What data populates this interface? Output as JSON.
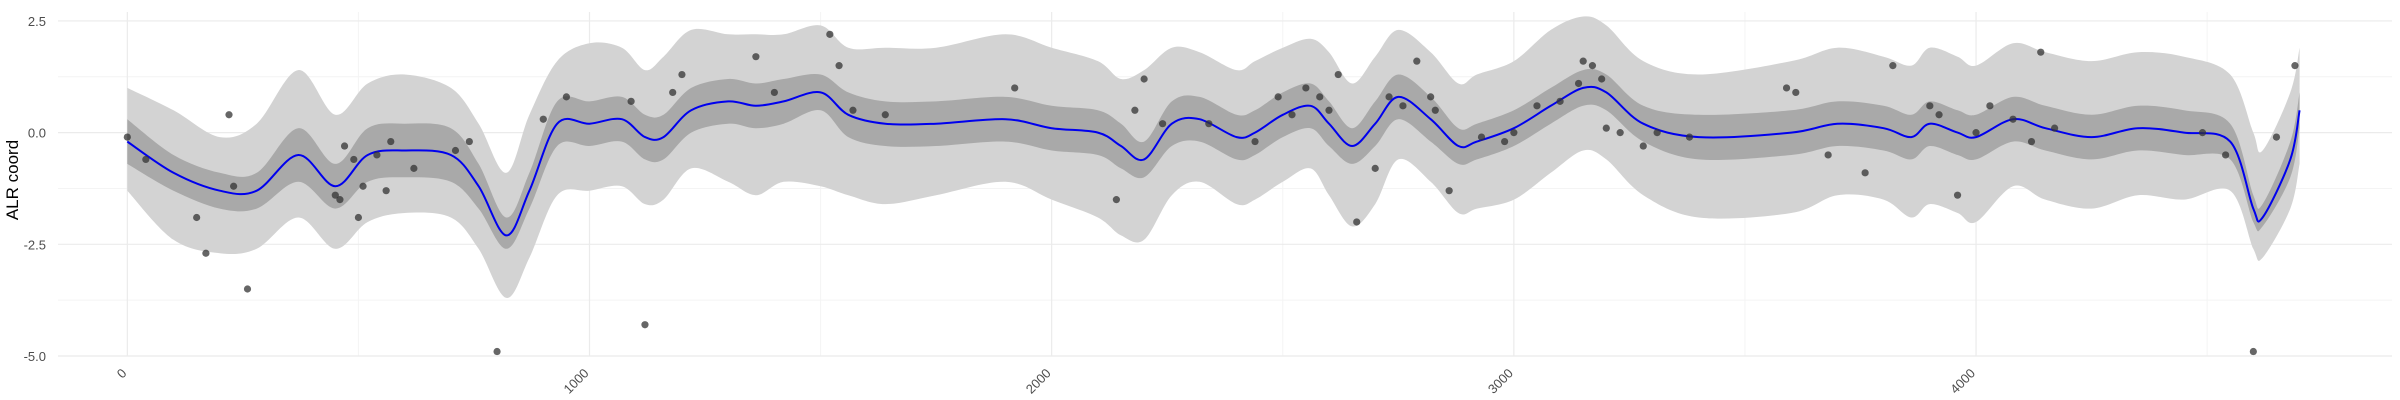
{
  "chart_data": {
    "type": "line",
    "title": "",
    "xlabel": "",
    "ylabel": "ALR coord",
    "xlim": [
      -150,
      4900
    ],
    "ylim": [
      -5.0,
      2.7
    ],
    "x_ticks": [
      0,
      1000,
      2000,
      3000,
      4000
    ],
    "x_tick_labels": [
      "0",
      "1000",
      "2000",
      "3000",
      "4000"
    ],
    "y_ticks": [
      2.5,
      0.0,
      -2.5,
      -5.0
    ],
    "y_tick_labels": [
      "2.5",
      "0.0",
      "-2.5",
      "-5.0"
    ],
    "grid": true,
    "legend": "none",
    "colors": {
      "mean_line": "#0000ee",
      "inner_band": "#a9a9a9",
      "outer_band": "#d3d3d3",
      "points": "#333333",
      "grid_major": "#ebebeb",
      "grid_minor": "#f4f4f4"
    },
    "series": [
      {
        "kind": "mean",
        "x": [
          0,
          100,
          200,
          280,
          370,
          450,
          520,
          600,
          700,
          760,
          820,
          870,
          930,
          1000,
          1070,
          1120,
          1160,
          1220,
          1300,
          1360,
          1420,
          1500,
          1560,
          1640,
          1750,
          1900,
          2000,
          2100,
          2150,
          2200,
          2260,
          2320,
          2400,
          2440,
          2500,
          2560,
          2600,
          2650,
          2700,
          2750,
          2820,
          2880,
          2920,
          3000,
          3080,
          3150,
          3200,
          3280,
          3400,
          3600,
          3700,
          3800,
          3860,
          3900,
          3960,
          4000,
          4080,
          4150,
          4250,
          4350,
          4450,
          4550,
          4600,
          4620,
          4680,
          4700
        ],
        "values": [
          -0.2,
          -0.9,
          -1.3,
          -1.3,
          -0.5,
          -1.2,
          -0.5,
          -0.4,
          -0.5,
          -1.2,
          -2.3,
          -1.3,
          0.2,
          0.2,
          0.3,
          -0.1,
          -0.1,
          0.5,
          0.7,
          0.6,
          0.7,
          0.9,
          0.4,
          0.2,
          0.2,
          0.3,
          0.1,
          0.0,
          -0.3,
          -0.6,
          0.2,
          0.3,
          -0.1,
          0.0,
          0.4,
          0.6,
          0.2,
          -0.3,
          0.2,
          0.8,
          0.3,
          -0.3,
          -0.2,
          0.1,
          0.6,
          1.0,
          0.9,
          0.2,
          -0.1,
          0.0,
          0.2,
          0.1,
          -0.1,
          0.2,
          0.0,
          -0.1,
          0.3,
          0.1,
          -0.1,
          0.1,
          0.0,
          -0.2,
          -1.7,
          -1.9,
          -0.6,
          0.5
        ]
      },
      {
        "kind": "inner_band",
        "x": [
          0,
          100,
          200,
          280,
          370,
          450,
          520,
          600,
          700,
          760,
          820,
          870,
          930,
          1000,
          1070,
          1120,
          1160,
          1220,
          1300,
          1360,
          1420,
          1500,
          1560,
          1640,
          1750,
          1900,
          2000,
          2100,
          2150,
          2200,
          2260,
          2320,
          2400,
          2440,
          2500,
          2560,
          2600,
          2650,
          2700,
          2750,
          2820,
          2880,
          2920,
          3000,
          3080,
          3150,
          3200,
          3280,
          3400,
          3600,
          3700,
          3800,
          3860,
          3900,
          3960,
          4000,
          4080,
          4150,
          4250,
          4350,
          4450,
          4550,
          4600,
          4620,
          4680,
          4700
        ],
        "lower": [
          -0.7,
          -1.3,
          -1.7,
          -1.7,
          -1.1,
          -1.7,
          -1.1,
          -1.0,
          -1.1,
          -1.7,
          -2.6,
          -1.7,
          -0.3,
          -0.3,
          -0.2,
          -0.6,
          -0.6,
          0.0,
          0.2,
          0.1,
          0.2,
          0.5,
          -0.1,
          -0.3,
          -0.3,
          -0.2,
          -0.4,
          -0.5,
          -0.8,
          -1.0,
          -0.3,
          -0.2,
          -0.6,
          -0.5,
          -0.1,
          0.1,
          -0.3,
          -0.7,
          -0.3,
          0.3,
          -0.2,
          -0.7,
          -0.6,
          -0.3,
          0.2,
          0.6,
          0.5,
          -0.2,
          -0.6,
          -0.5,
          -0.3,
          -0.4,
          -0.6,
          -0.3,
          -0.5,
          -0.6,
          -0.2,
          -0.4,
          -0.6,
          -0.4,
          -0.5,
          -0.6,
          -2.0,
          -2.1,
          -1.0,
          0.1
        ],
        "upper": [
          0.3,
          -0.5,
          -0.9,
          -0.9,
          0.1,
          -0.7,
          0.1,
          0.2,
          0.1,
          -0.7,
          -1.9,
          -0.9,
          0.7,
          0.7,
          0.8,
          0.4,
          0.4,
          1.0,
          1.2,
          1.1,
          1.2,
          1.3,
          0.9,
          0.7,
          0.7,
          0.8,
          0.6,
          0.5,
          0.2,
          -0.2,
          0.7,
          0.8,
          0.4,
          0.5,
          0.9,
          1.1,
          0.7,
          0.1,
          0.7,
          1.3,
          0.8,
          0.1,
          0.2,
          0.5,
          1.0,
          1.4,
          1.3,
          0.6,
          0.4,
          0.5,
          0.7,
          0.6,
          0.4,
          0.7,
          0.5,
          0.4,
          0.8,
          0.6,
          0.4,
          0.6,
          0.5,
          0.2,
          -1.4,
          -1.6,
          -0.2,
          0.9
        ]
      },
      {
        "kind": "outer_band",
        "x": [
          0,
          100,
          200,
          280,
          370,
          450,
          520,
          600,
          700,
          760,
          820,
          870,
          930,
          1000,
          1070,
          1120,
          1160,
          1220,
          1300,
          1360,
          1420,
          1500,
          1560,
          1640,
          1750,
          1900,
          2000,
          2100,
          2150,
          2200,
          2260,
          2320,
          2400,
          2440,
          2500,
          2560,
          2600,
          2650,
          2700,
          2750,
          2820,
          2880,
          2920,
          3000,
          3080,
          3150,
          3200,
          3280,
          3400,
          3600,
          3700,
          3800,
          3860,
          3900,
          3960,
          4000,
          4080,
          4150,
          4250,
          4350,
          4450,
          4550,
          4600,
          4620,
          4680,
          4700
        ],
        "lower": [
          -1.3,
          -2.4,
          -2.7,
          -2.6,
          -1.9,
          -2.6,
          -2.0,
          -1.8,
          -1.9,
          -2.6,
          -3.7,
          -2.8,
          -1.4,
          -1.3,
          -1.2,
          -1.6,
          -1.5,
          -0.8,
          -1.1,
          -1.4,
          -1.1,
          -1.2,
          -1.4,
          -1.6,
          -1.4,
          -1.1,
          -1.5,
          -1.9,
          -2.3,
          -2.4,
          -1.4,
          -1.1,
          -1.6,
          -1.5,
          -1.1,
          -0.8,
          -1.4,
          -2.1,
          -1.6,
          -0.6,
          -1.1,
          -1.8,
          -1.7,
          -1.5,
          -0.9,
          -0.4,
          -0.6,
          -1.4,
          -1.9,
          -1.8,
          -1.4,
          -1.5,
          -1.9,
          -1.6,
          -1.8,
          -2.0,
          -1.2,
          -1.5,
          -1.7,
          -1.4,
          -1.5,
          -1.3,
          -2.6,
          -2.8,
          -1.7,
          -0.7
        ],
        "upper": [
          1.0,
          0.5,
          -0.1,
          0.2,
          1.4,
          0.4,
          1.1,
          1.3,
          1.0,
          0.2,
          -0.9,
          0.4,
          1.6,
          2.0,
          1.9,
          1.4,
          1.7,
          2.3,
          2.2,
          2.2,
          2.2,
          2.4,
          1.9,
          1.9,
          1.9,
          2.2,
          1.9,
          1.6,
          1.2,
          1.4,
          1.9,
          1.8,
          1.4,
          1.6,
          1.9,
          2.1,
          1.8,
          1.1,
          1.7,
          2.3,
          1.8,
          1.1,
          1.3,
          1.6,
          2.3,
          2.6,
          2.4,
          1.6,
          1.3,
          1.6,
          1.9,
          1.7,
          1.5,
          1.9,
          1.7,
          1.5,
          2.0,
          1.8,
          1.6,
          1.8,
          1.7,
          1.3,
          0.0,
          -0.4,
          0.9,
          1.9
        ]
      },
      {
        "kind": "points",
        "x": [
          0,
          40,
          150,
          170,
          220,
          230,
          260,
          450,
          460,
          470,
          490,
          500,
          510,
          540,
          560,
          570,
          620,
          710,
          740,
          800,
          900,
          950,
          1090,
          1120,
          1180,
          1200,
          1360,
          1400,
          1520,
          1540,
          1570,
          1640,
          1920,
          2140,
          2180,
          2200,
          2240,
          2340,
          2440,
          2490,
          2520,
          2550,
          2580,
          2600,
          2620,
          2660,
          2700,
          2730,
          2760,
          2790,
          2820,
          2830,
          2860,
          2930,
          2980,
          3000,
          3050,
          3100,
          3140,
          3150,
          3170,
          3190,
          3200,
          3230,
          3280,
          3310,
          3380,
          3590,
          3610,
          3680,
          3760,
          3820,
          3900,
          3920,
          3960,
          4000,
          4030,
          4080,
          4120,
          4140,
          4170,
          4490,
          4540,
          4600,
          4650,
          4690
        ],
        "values": [
          -0.1,
          -0.6,
          -1.9,
          -2.7,
          0.4,
          -1.2,
          -3.5,
          -1.4,
          -1.5,
          -0.3,
          -0.6,
          -1.9,
          -1.2,
          -0.5,
          -1.3,
          -0.2,
          -0.8,
          -0.4,
          -0.2,
          -4.9,
          0.3,
          0.8,
          0.7,
          -4.3,
          0.9,
          1.3,
          1.7,
          0.9,
          2.2,
          1.5,
          0.5,
          0.4,
          1.0,
          -1.5,
          0.5,
          1.2,
          0.2,
          0.2,
          -0.2,
          0.8,
          0.4,
          1.0,
          0.8,
          0.5,
          1.3,
          -2.0,
          -0.8,
          0.8,
          0.6,
          1.6,
          0.8,
          0.5,
          -1.3,
          -0.1,
          -0.2,
          0.0,
          0.6,
          0.7,
          1.1,
          1.6,
          1.5,
          1.2,
          0.1,
          0.0,
          -0.3,
          0.0,
          -0.1,
          1.0,
          0.9,
          -0.5,
          -0.9,
          1.5,
          0.6,
          0.4,
          -1.4,
          0.0,
          0.6,
          0.3,
          -0.2,
          1.8,
          0.1,
          0.0,
          -0.5,
          -4.9,
          -0.1,
          1.5
        ]
      }
    ]
  }
}
